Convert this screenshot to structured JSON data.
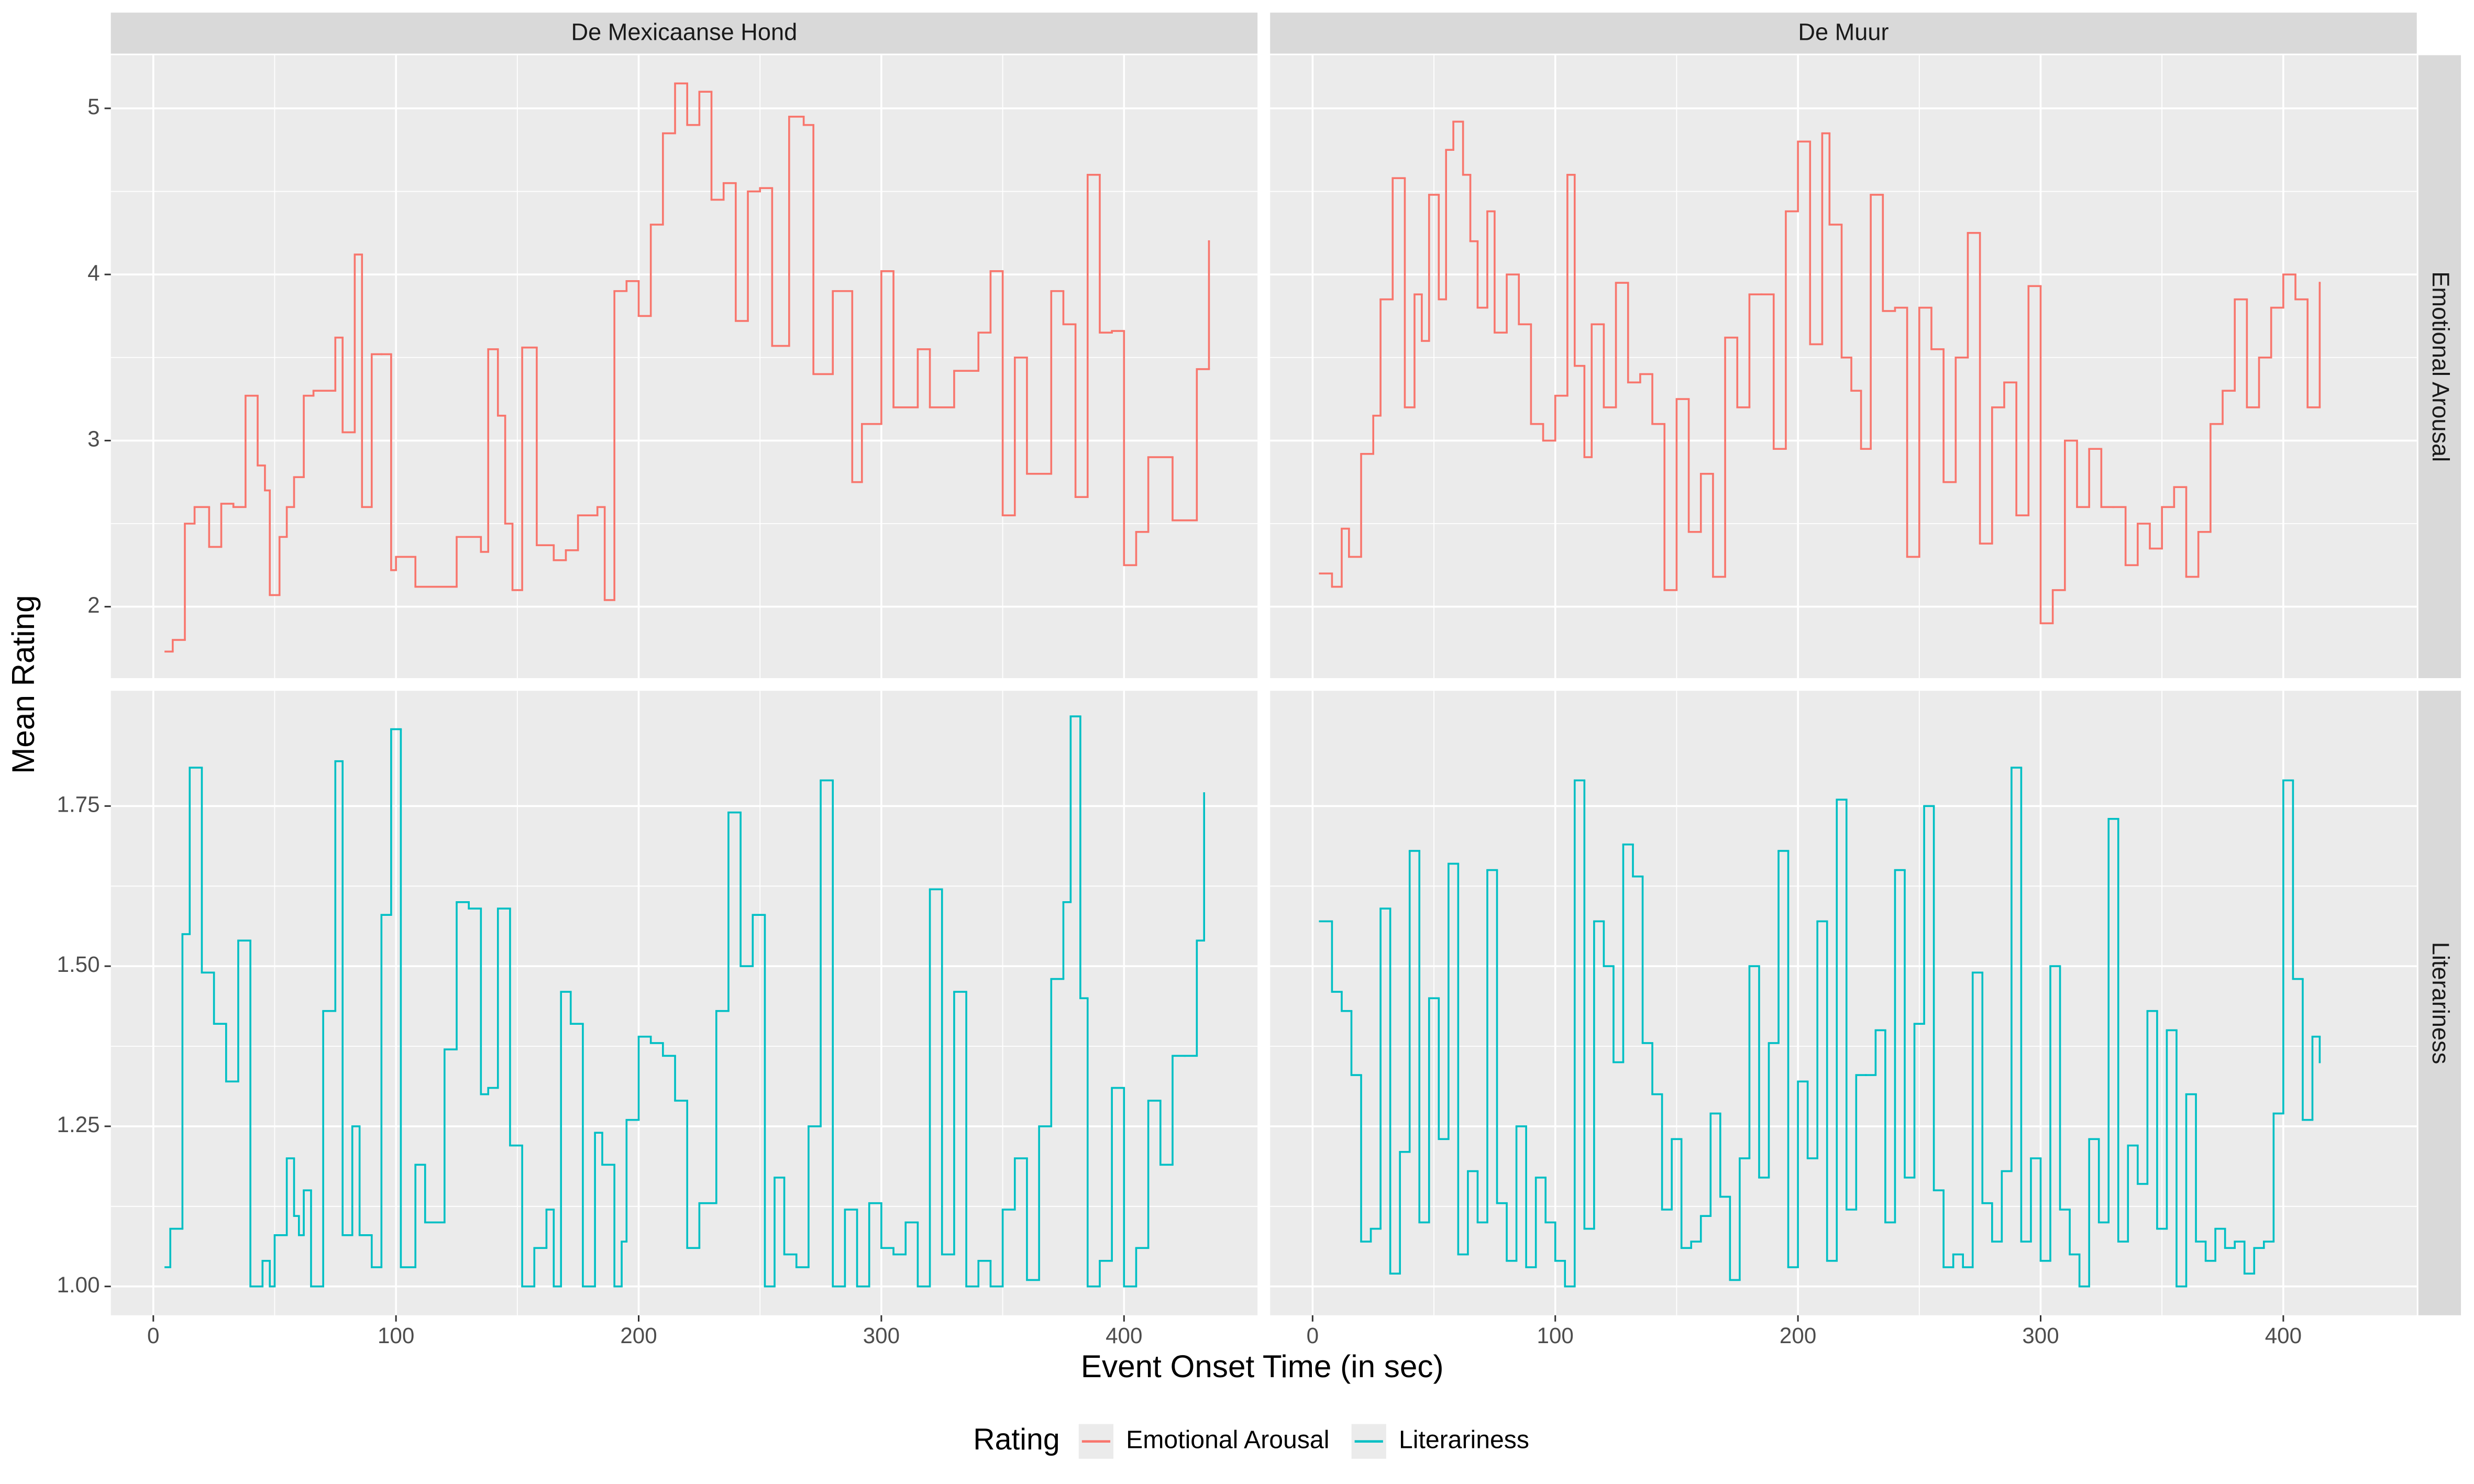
{
  "chart_data": {
    "type": "step",
    "x_label": "Event Onset Time (in sec)",
    "y_label": "Mean Rating",
    "legend_title": "Rating",
    "legend_position": "bottom",
    "grid": true,
    "facets": [
      "De Mexicaanse Hond",
      "De Muur"
    ],
    "xlim": [
      -17.5,
      455
    ],
    "xticks": [
      0,
      100,
      200,
      300,
      400
    ],
    "series": [
      {
        "name": "Emotional Arousal",
        "color": "#F8766D",
        "ylim": [
          1.57,
          5.32
        ],
        "yticks": [
          2,
          3,
          4,
          5
        ],
        "panels": [
          {
            "x": [
              5,
              8,
              13,
              17,
              23,
              28,
              33,
              38,
              43,
              46,
              48,
              52,
              55,
              58,
              62,
              66,
              75,
              78,
              83,
              86,
              90,
              94,
              98,
              100,
              108,
              125,
              135,
              138,
              142,
              145,
              148,
              152,
              158,
              165,
              170,
              175,
              183,
              186,
              190,
              195,
              200,
              205,
              210,
              215,
              220,
              225,
              230,
              235,
              240,
              245,
              250,
              255,
              262,
              268,
              272,
              280,
              288,
              292,
              300,
              305,
              315,
              320,
              330,
              340,
              345,
              350,
              355,
              360,
              370,
              375,
              380,
              385,
              390,
              395,
              400,
              405,
              410,
              420,
              430,
              435
            ],
            "values": [
              1.73,
              1.8,
              2.5,
              2.6,
              2.36,
              2.62,
              2.6,
              3.27,
              2.85,
              2.7,
              2.07,
              2.42,
              2.6,
              2.78,
              3.27,
              3.3,
              3.62,
              3.05,
              4.12,
              2.6,
              3.52,
              3.52,
              2.22,
              2.3,
              2.12,
              2.42,
              2.33,
              3.55,
              3.15,
              2.5,
              2.1,
              3.56,
              2.37,
              2.28,
              2.34,
              2.55,
              2.6,
              2.04,
              3.9,
              3.96,
              3.75,
              4.3,
              4.85,
              5.15,
              4.9,
              5.1,
              4.45,
              4.55,
              3.72,
              4.5,
              4.52,
              3.57,
              4.95,
              4.9,
              3.4,
              3.9,
              2.75,
              3.1,
              4.02,
              3.2,
              3.55,
              3.2,
              3.42,
              3.65,
              4.02,
              2.55,
              3.5,
              2.8,
              3.9,
              3.7,
              2.66,
              4.6,
              3.65,
              3.66,
              2.25,
              2.45,
              2.9,
              2.52,
              3.43,
              4.2
            ]
          },
          {
            "x": [
              3,
              8,
              12,
              15,
              20,
              25,
              28,
              33,
              38,
              42,
              45,
              48,
              52,
              55,
              58,
              62,
              65,
              68,
              72,
              75,
              80,
              85,
              90,
              95,
              100,
              105,
              108,
              112,
              115,
              120,
              125,
              130,
              135,
              140,
              145,
              150,
              155,
              160,
              165,
              170,
              175,
              180,
              185,
              190,
              195,
              200,
              205,
              210,
              213,
              218,
              222,
              226,
              230,
              235,
              240,
              245,
              250,
              255,
              260,
              265,
              270,
              275,
              280,
              285,
              290,
              295,
              300,
              305,
              310,
              315,
              320,
              325,
              330,
              335,
              340,
              345,
              350,
              355,
              360,
              365,
              370,
              375,
              380,
              385,
              390,
              395,
              400,
              405,
              410,
              415
            ],
            "values": [
              2.2,
              2.12,
              2.47,
              2.3,
              2.92,
              3.15,
              3.85,
              4.58,
              3.2,
              3.88,
              3.6,
              4.48,
              3.85,
              4.75,
              4.92,
              4.6,
              4.2,
              3.8,
              4.38,
              3.65,
              4.0,
              3.7,
              3.1,
              3.0,
              3.27,
              4.6,
              3.45,
              2.9,
              3.7,
              3.2,
              3.95,
              3.35,
              3.4,
              3.1,
              2.1,
              3.25,
              2.45,
              2.8,
              2.18,
              3.62,
              3.2,
              3.88,
              3.88,
              2.95,
              4.38,
              4.8,
              3.58,
              4.85,
              4.3,
              3.5,
              3.3,
              2.95,
              4.48,
              3.78,
              3.8,
              2.3,
              3.8,
              3.55,
              2.75,
              3.5,
              4.25,
              2.38,
              3.2,
              3.35,
              2.55,
              3.93,
              1.9,
              2.1,
              3.0,
              2.6,
              2.95,
              2.6,
              2.6,
              2.25,
              2.5,
              2.35,
              2.6,
              2.72,
              2.18,
              2.45,
              3.1,
              3.3,
              3.85,
              3.2,
              3.5,
              3.8,
              4.0,
              3.85,
              3.2,
              3.95
            ]
          }
        ]
      },
      {
        "name": "Literariness",
        "color": "#00BFC4",
        "ylim": [
          0.955,
          1.93
        ],
        "yticks": [
          {
            "value": 1,
            "label": "1.00"
          },
          {
            "value": 1.25,
            "label": "1.25"
          },
          {
            "value": 1.5,
            "label": "1.50"
          },
          {
            "value": 1.75,
            "label": "1.75"
          }
        ],
        "panels": [
          {
            "x": [
              5,
              7,
              12,
              15,
              20,
              25,
              30,
              35,
              40,
              45,
              48,
              50,
              55,
              58,
              60,
              62,
              65,
              70,
              75,
              78,
              82,
              85,
              90,
              94,
              98,
              102,
              108,
              112,
              120,
              125,
              130,
              135,
              138,
              142,
              147,
              152,
              157,
              162,
              165,
              168,
              172,
              177,
              182,
              185,
              190,
              193,
              195,
              200,
              205,
              210,
              215,
              220,
              225,
              232,
              237,
              242,
              247,
              252,
              256,
              260,
              265,
              270,
              275,
              280,
              285,
              290,
              295,
              300,
              305,
              310,
              315,
              320,
              325,
              330,
              335,
              340,
              345,
              350,
              355,
              360,
              365,
              370,
              375,
              378,
              382,
              385,
              390,
              395,
              400,
              405,
              410,
              415,
              420,
              425,
              430,
              433
            ],
            "values": [
              1.03,
              1.09,
              1.55,
              1.81,
              1.49,
              1.41,
              1.32,
              1.54,
              1.0,
              1.04,
              1.0,
              1.08,
              1.2,
              1.11,
              1.08,
              1.15,
              1.0,
              1.43,
              1.82,
              1.08,
              1.25,
              1.08,
              1.03,
              1.58,
              1.87,
              1.03,
              1.19,
              1.1,
              1.37,
              1.6,
              1.59,
              1.3,
              1.31,
              1.59,
              1.22,
              1.0,
              1.06,
              1.12,
              1.0,
              1.46,
              1.41,
              1.0,
              1.24,
              1.19,
              1.0,
              1.07,
              1.26,
              1.39,
              1.38,
              1.36,
              1.29,
              1.06,
              1.13,
              1.43,
              1.74,
              1.5,
              1.58,
              1.0,
              1.17,
              1.05,
              1.03,
              1.25,
              1.79,
              1.0,
              1.12,
              1.0,
              1.13,
              1.06,
              1.05,
              1.1,
              1.0,
              1.62,
              1.05,
              1.46,
              1.0,
              1.04,
              1.0,
              1.12,
              1.2,
              1.01,
              1.25,
              1.48,
              1.6,
              1.89,
              1.45,
              1.0,
              1.04,
              1.31,
              1.0,
              1.06,
              1.29,
              1.19,
              1.36,
              1.36,
              1.54,
              1.77
            ]
          },
          {
            "x": [
              3,
              8,
              12,
              16,
              20,
              24,
              28,
              32,
              36,
              40,
              44,
              48,
              52,
              56,
              60,
              64,
              68,
              72,
              76,
              80,
              84,
              88,
              92,
              96,
              100,
              104,
              108,
              112,
              116,
              120,
              124,
              128,
              132,
              136,
              140,
              144,
              148,
              152,
              156,
              160,
              164,
              168,
              172,
              176,
              180,
              184,
              188,
              192,
              196,
              200,
              204,
              208,
              212,
              216,
              220,
              224,
              228,
              232,
              236,
              240,
              244,
              248,
              252,
              256,
              260,
              264,
              268,
              272,
              276,
              280,
              284,
              288,
              292,
              296,
              300,
              304,
              308,
              312,
              316,
              320,
              324,
              328,
              332,
              336,
              340,
              344,
              348,
              352,
              356,
              360,
              364,
              368,
              372,
              376,
              380,
              384,
              388,
              392,
              396,
              400,
              404,
              408,
              412,
              415
            ],
            "values": [
              1.57,
              1.46,
              1.43,
              1.33,
              1.07,
              1.09,
              1.59,
              1.02,
              1.21,
              1.68,
              1.1,
              1.45,
              1.23,
              1.66,
              1.05,
              1.18,
              1.1,
              1.65,
              1.13,
              1.04,
              1.25,
              1.03,
              1.17,
              1.1,
              1.04,
              1.0,
              1.79,
              1.09,
              1.57,
              1.5,
              1.35,
              1.69,
              1.64,
              1.38,
              1.3,
              1.12,
              1.23,
              1.06,
              1.07,
              1.11,
              1.27,
              1.14,
              1.01,
              1.2,
              1.5,
              1.17,
              1.38,
              1.68,
              1.03,
              1.32,
              1.2,
              1.57,
              1.04,
              1.76,
              1.12,
              1.33,
              1.33,
              1.4,
              1.1,
              1.65,
              1.17,
              1.41,
              1.75,
              1.15,
              1.03,
              1.05,
              1.03,
              1.49,
              1.13,
              1.07,
              1.18,
              1.81,
              1.07,
              1.2,
              1.04,
              1.5,
              1.12,
              1.05,
              1.0,
              1.23,
              1.1,
              1.73,
              1.07,
              1.22,
              1.16,
              1.43,
              1.09,
              1.4,
              1.0,
              1.3,
              1.07,
              1.04,
              1.09,
              1.06,
              1.07,
              1.02,
              1.06,
              1.07,
              1.27,
              1.79,
              1.48,
              1.26,
              1.39,
              1.35
            ]
          }
        ]
      }
    ]
  }
}
